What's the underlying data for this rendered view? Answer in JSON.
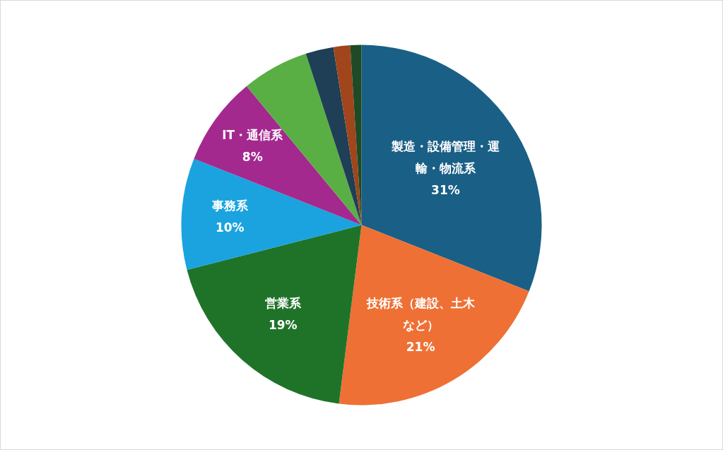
{
  "chart_data": {
    "type": "pie",
    "categories": [
      "製造・設備管理・運輸・物流系",
      "技術系（建設、土木など）",
      "営業系",
      "事務系",
      "IT・通信系",
      null,
      null,
      null,
      null
    ],
    "values": [
      31,
      21,
      19,
      10,
      8,
      6,
      2.5,
      1.5,
      1
    ],
    "value_labels": [
      "31%",
      "21%",
      "19%",
      "10%",
      "8%",
      null,
      null,
      null,
      null
    ],
    "colors": [
      "#1a5f85",
      "#ee7034",
      "#1f7329",
      "#1aa3df",
      "#a4298f",
      "#5aaf44",
      "#1e3f55",
      "#a0451c",
      "#1e4a25"
    ]
  }
}
